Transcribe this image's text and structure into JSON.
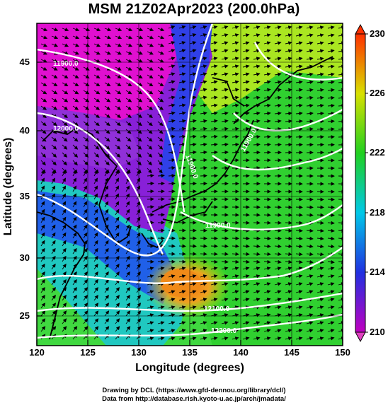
{
  "title": "MSM 21Z02Apr2023 (200.0hPa)",
  "x_axis": {
    "label": "Longitude (degrees)",
    "ticks": [
      "120",
      "125",
      "130",
      "135",
      "140",
      "145",
      "150"
    ],
    "range": [
      120,
      150
    ]
  },
  "y_axis": {
    "label": "Latitude  (degrees)",
    "ticks": [
      "25",
      "30",
      "35",
      "40",
      "45"
    ],
    "range": [
      22.4,
      47.6
    ]
  },
  "colorbar": {
    "ticks": [
      "210",
      "214",
      "218",
      "222",
      "226",
      "230"
    ],
    "range": [
      210,
      230
    ],
    "colors": [
      "#c000c0",
      "#2020e0",
      "#00d0e0",
      "#20d020",
      "#d0e000",
      "#ff3000"
    ]
  },
  "contour_labels": [
    "11900.0",
    "12000.0",
    "11900.0",
    "11900.0",
    "11900.0",
    "12100.0",
    "12200.0"
  ],
  "credits": {
    "drawing": "Drawing by DCL (https://www.gfd-dennou.org/library/dcl/)",
    "source": "Data from http://database.rish.kyoto-u.ac.jp/arch/jmadata/"
  }
}
